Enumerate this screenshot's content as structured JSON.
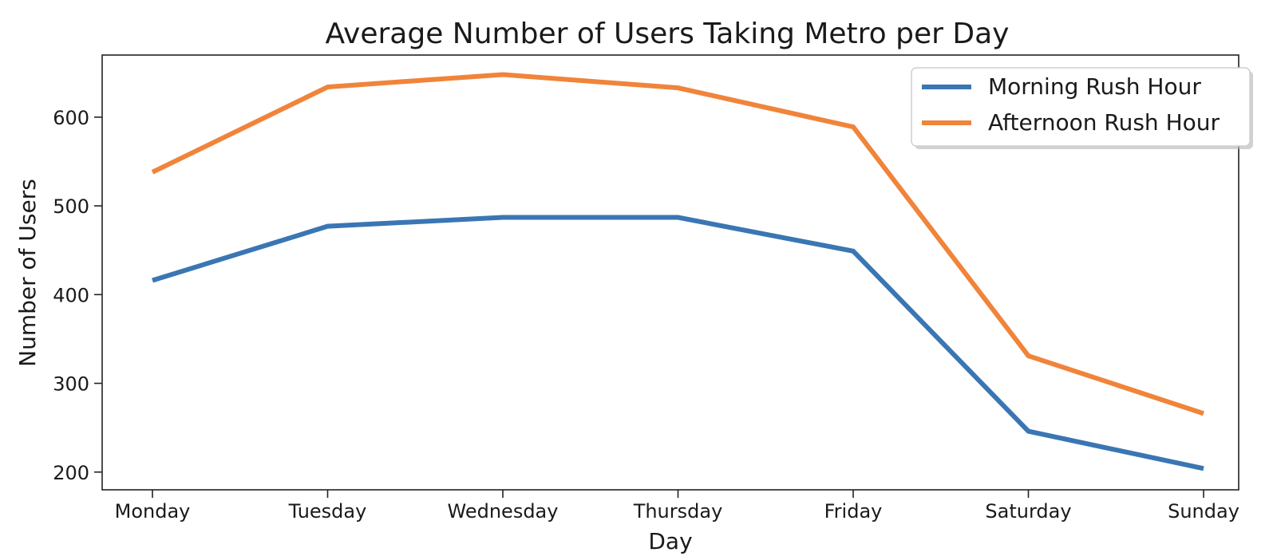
{
  "chart_data": {
    "type": "line",
    "title": "Average Number of Users Taking Metro per Day",
    "xlabel": "Day",
    "ylabel": "Number of Users",
    "categories": [
      "Monday",
      "Tuesday",
      "Wednesday",
      "Thursday",
      "Friday",
      "Saturday",
      "Sunday"
    ],
    "series": [
      {
        "name": "Morning Rush Hour",
        "color": "#3a76b3",
        "values": [
          416,
          477,
          487,
          487,
          449,
          246,
          204
        ]
      },
      {
        "name": "Afternoon Rush Hour",
        "color": "#f0843a",
        "values": [
          538,
          634,
          648,
          633,
          589,
          331,
          266
        ]
      }
    ],
    "ylim": [
      180,
      670
    ],
    "yticks": [
      200,
      300,
      400,
      500,
      600
    ],
    "grid": false,
    "legend": "top-right"
  }
}
